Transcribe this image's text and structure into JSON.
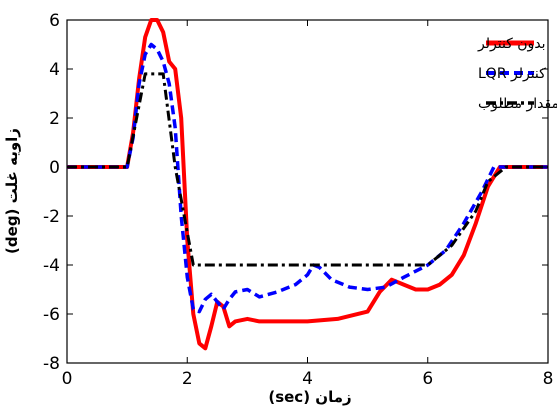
{
  "chart_data": {
    "type": "line",
    "title": "",
    "xlabel": "زمان (sec)",
    "ylabel": "زاویه غلت (deg)",
    "xlim": [
      0,
      8
    ],
    "ylim": [
      -8,
      6
    ],
    "xticks": [
      0,
      2,
      4,
      6,
      8
    ],
    "yticks": [
      6,
      4,
      2,
      0,
      -2,
      -4,
      -6,
      -8
    ],
    "xtick_labels": [
      "0",
      "2",
      "4",
      "6",
      "8"
    ],
    "ytick_labels": [
      "6",
      "4",
      "2",
      "0",
      "-2",
      "-4",
      "-6",
      "-8"
    ],
    "grid": false,
    "legend_position": "top-right",
    "series": [
      {
        "name": "بدون کنترلر",
        "color": "#ff0000",
        "style": "solid",
        "x": [
          0,
          1.0,
          1.1,
          1.2,
          1.3,
          1.4,
          1.5,
          1.6,
          1.7,
          1.8,
          1.9,
          2.0,
          2.1,
          2.2,
          2.3,
          2.4,
          2.5,
          2.6,
          2.7,
          2.8,
          3.0,
          3.2,
          3.5,
          4.0,
          4.5,
          5.0,
          5.2,
          5.4,
          5.6,
          5.8,
          6.0,
          6.2,
          6.4,
          6.6,
          6.8,
          7.0,
          7.2,
          7.5,
          8.0
        ],
        "y": [
          0,
          0,
          1.4,
          3.6,
          5.3,
          6.0,
          6.0,
          5.5,
          4.3,
          4.0,
          2.0,
          -3.0,
          -6.0,
          -7.2,
          -7.4,
          -6.5,
          -5.5,
          -5.7,
          -6.5,
          -6.3,
          -6.2,
          -6.3,
          -6.3,
          -6.3,
          -6.2,
          -5.9,
          -5.1,
          -4.6,
          -4.8,
          -5.0,
          -5.0,
          -4.8,
          -4.4,
          -3.6,
          -2.3,
          -0.8,
          0.0,
          0.0,
          0.0
        ]
      },
      {
        "name": "کنترلر LQR",
        "color": "#0000ff",
        "style": "dashed",
        "x": [
          0,
          1.0,
          1.1,
          1.2,
          1.3,
          1.4,
          1.5,
          1.6,
          1.7,
          1.8,
          1.9,
          2.0,
          2.1,
          2.2,
          2.3,
          2.4,
          2.5,
          2.6,
          2.7,
          2.8,
          3.0,
          3.2,
          3.5,
          3.8,
          4.0,
          4.1,
          4.2,
          4.4,
          4.7,
          5.0,
          5.3,
          5.6,
          6.0,
          6.3,
          6.6,
          6.9,
          7.1,
          7.3,
          8.0
        ],
        "y": [
          0,
          0,
          1.2,
          3.4,
          4.6,
          5.0,
          4.8,
          4.3,
          3.4,
          1.6,
          -2.0,
          -4.5,
          -5.8,
          -5.9,
          -5.4,
          -5.2,
          -5.5,
          -5.8,
          -5.4,
          -5.1,
          -5.0,
          -5.3,
          -5.1,
          -4.8,
          -4.4,
          -4.0,
          -4.1,
          -4.6,
          -4.9,
          -5.0,
          -4.9,
          -4.5,
          -4.0,
          -3.4,
          -2.3,
          -1.0,
          0.0,
          0.0,
          0.0
        ]
      },
      {
        "name": "مقدار مطلوب",
        "color": "#000000",
        "style": "dashdot",
        "x": [
          0,
          1.0,
          1.3,
          1.6,
          1.8,
          2.1,
          2.2,
          3.0,
          4.0,
          5.0,
          6.0,
          6.4,
          6.8,
          7.0,
          7.3,
          8.0
        ],
        "y": [
          0,
          0,
          3.8,
          3.8,
          0.0,
          -4.0,
          -4.0,
          -4.0,
          -4.0,
          -4.0,
          -4.0,
          -3.2,
          -1.8,
          -0.6,
          0.0,
          0.0
        ]
      }
    ]
  }
}
